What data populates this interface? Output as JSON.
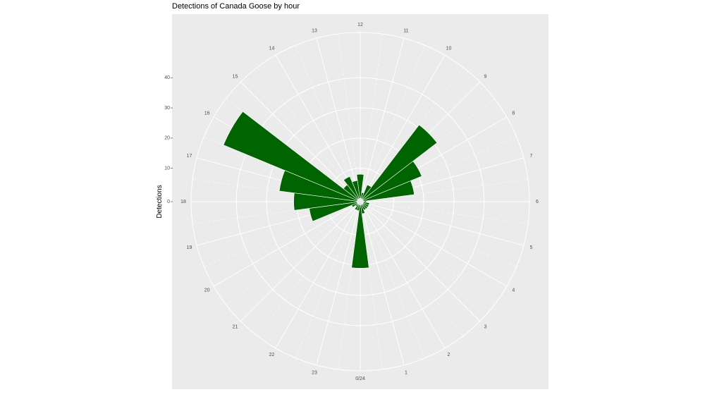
{
  "chart_data": {
    "type": "bar",
    "subtype": "polar",
    "title": "Detections of Canada Goose by hour",
    "ylabel": "Detections",
    "xlabel": "",
    "x_tick_labels": [
      "0/24",
      "1",
      "2",
      "3",
      "4",
      "5",
      "6",
      "7",
      "8",
      "9",
      "10",
      "11",
      "12",
      "13",
      "14",
      "15",
      "16",
      "17",
      "18",
      "19",
      "20",
      "21",
      "22",
      "23"
    ],
    "y_ticks": [
      0,
      10,
      20,
      30,
      40
    ],
    "y_tick_labels": [
      "0",
      "10",
      "20",
      "30",
      "40"
    ],
    "ylim": [
      0,
      55
    ],
    "categories": [
      "0",
      "1",
      "2",
      "3",
      "4",
      "5",
      "6",
      "7",
      "8",
      "9",
      "10",
      "11",
      "12",
      "13",
      "14",
      "15",
      "16",
      "17",
      "18",
      "19",
      "20",
      "21",
      "22",
      "23"
    ],
    "values": [
      21,
      3,
      2,
      2,
      2,
      2,
      1,
      17,
      21,
      31,
      5,
      2,
      8,
      6,
      8,
      6,
      48,
      26,
      21,
      16,
      2,
      1,
      2,
      2
    ],
    "grid": true,
    "colors": {
      "bar": "#006400",
      "panel": "#ebebeb",
      "grid": "#ffffff",
      "tick_text": "#4d4d4d"
    }
  }
}
